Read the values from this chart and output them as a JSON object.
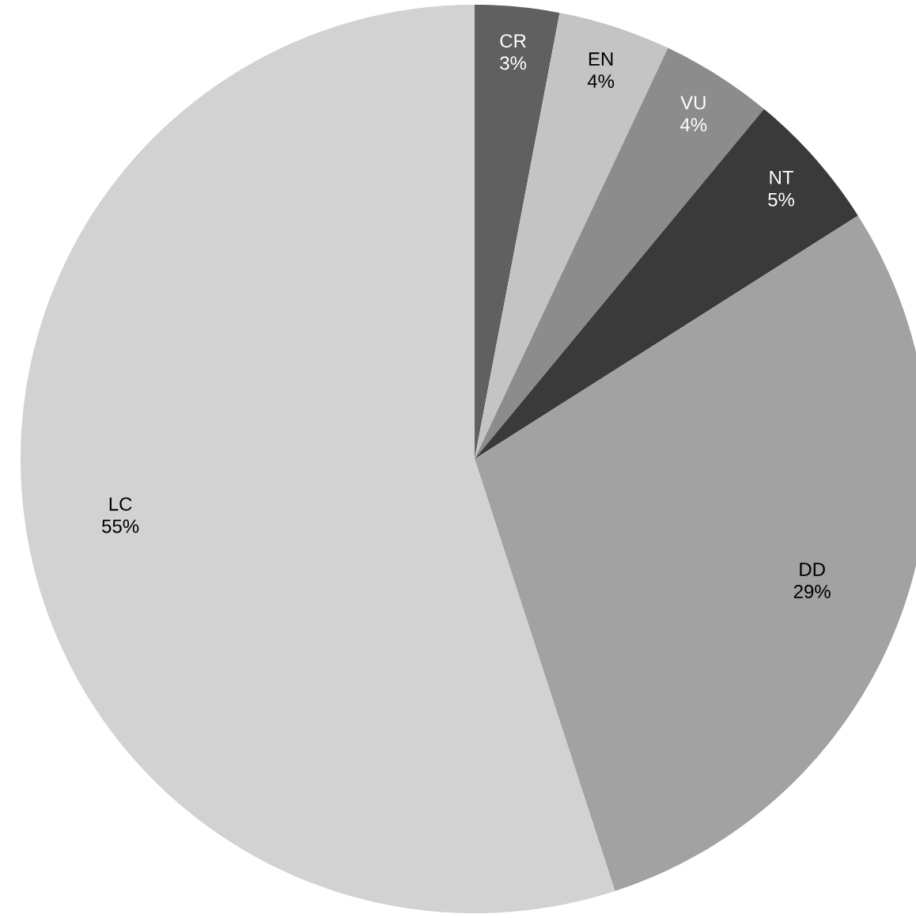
{
  "chart_data": {
    "type": "pie",
    "categories": [
      "CR",
      "EN",
      "VU",
      "NT",
      "DD",
      "LC"
    ],
    "values": [
      3,
      4,
      4,
      5,
      29,
      55
    ],
    "value_labels": [
      "3%",
      "4%",
      "4%",
      "5%",
      "29%",
      "55%"
    ],
    "colors": [
      "#606060",
      "#c4c4c4",
      "#8c8c8c",
      "#3a3a3a",
      "#a2a2a2",
      "#d2d2d2"
    ]
  }
}
